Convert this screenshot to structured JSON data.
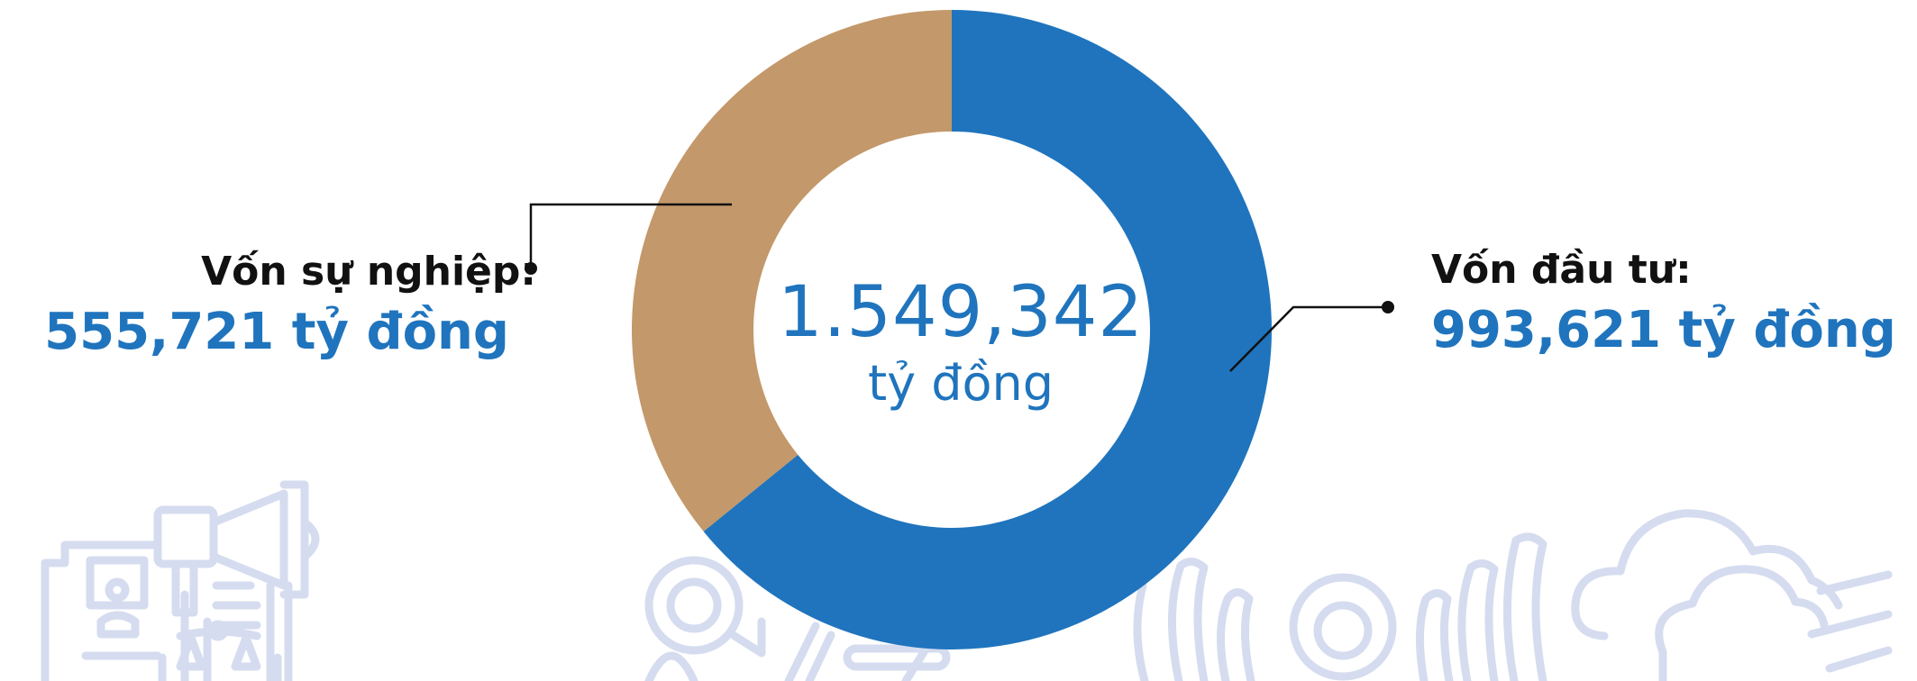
{
  "chart_data": {
    "type": "pie",
    "style": "donut",
    "total": {
      "value": "1.549,342",
      "unit": "tỷ đồng"
    },
    "slices": [
      {
        "label": "Vốn đầu tư:",
        "value": 993621,
        "display_value": "993,621 tỷ đồng",
        "color": "#1f74bd"
      },
      {
        "label": "Vốn sự nghiệp:",
        "value": 555721,
        "display_value": "555,721 tỷ đồng",
        "color": "#c3986a"
      }
    ],
    "start_angle": "top, clockwise",
    "legend": "callout labels left and right"
  },
  "decor": {
    "color": "#d5dcef",
    "icons": [
      "id-card-icon",
      "megaphone-icon",
      "justice-scale-icon",
      "target-icon",
      "signal-waves-icon",
      "cloud-icon"
    ]
  }
}
